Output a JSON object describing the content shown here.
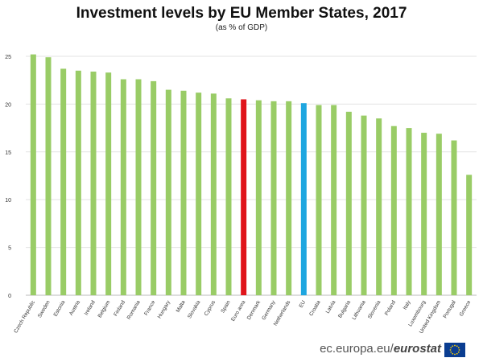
{
  "chart_data": {
    "type": "bar",
    "title": "Investment levels by EU Member States, 2017",
    "subtitle": "(as % of GDP)",
    "xlabel": "",
    "ylabel": "",
    "ylim": [
      0,
      25
    ],
    "yticks": [
      "0",
      "5",
      "10",
      "15",
      "20",
      "25"
    ],
    "grid": true,
    "categories": [
      "Czech Republic",
      "Sweden",
      "Estonia",
      "Austria",
      "Ireland",
      "Belgium",
      "Finland",
      "Romania",
      "France",
      "Hungary",
      "Malta",
      "Slovakia",
      "Cyprus",
      "Spain",
      "Euro area",
      "Denmark",
      "Germany",
      "Netherlands",
      "EU",
      "Croatia",
      "Latvia",
      "Bulgaria",
      "Lithuania",
      "Slovenia",
      "Poland",
      "Italy",
      "Luxembourg",
      "United Kingdom",
      "Portugal",
      "Greece"
    ],
    "values": [
      25.2,
      24.9,
      23.7,
      23.5,
      23.4,
      23.3,
      22.6,
      22.6,
      22.4,
      21.5,
      21.4,
      21.2,
      21.1,
      20.6,
      20.5,
      20.4,
      20.3,
      20.3,
      20.1,
      19.9,
      19.9,
      19.2,
      18.8,
      18.5,
      17.7,
      17.5,
      17.0,
      16.9,
      16.2,
      12.6
    ],
    "colors": {
      "default": "#99cc66",
      "Euro area": "#e0141b",
      "EU": "#1ea6e0"
    }
  },
  "footer": {
    "text_plain": "ec.europa.eu/",
    "text_bold": "eurostat"
  },
  "logo": {
    "icon": "eu-flag-icon",
    "color": "#0a3d91",
    "star_color": "#ffd200"
  }
}
